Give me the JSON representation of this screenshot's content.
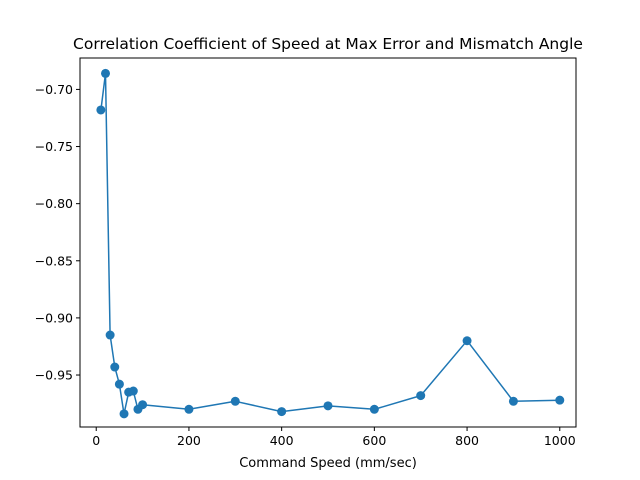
{
  "chart_data": {
    "type": "line",
    "title": "Correlation Coefficient of Speed at Max Error and Mismatch Angle",
    "xlabel": "Command Speed (mm/sec)",
    "ylabel": "",
    "xlim": [
      -35,
      1035
    ],
    "ylim": [
      -0.9955,
      -0.6725
    ],
    "xticks": [
      0,
      200,
      400,
      600,
      800,
      1000
    ],
    "yticks": [
      -0.95,
      -0.9,
      -0.85,
      -0.8,
      -0.75,
      -0.7
    ],
    "xtick_labels": [
      "0",
      "200",
      "400",
      "600",
      "800",
      "1000"
    ],
    "ytick_labels": [
      "−0.95",
      "−0.90",
      "−0.85",
      "−0.80",
      "−0.75",
      "−0.70"
    ],
    "grid": false,
    "series": [
      {
        "color": "#1f77b4",
        "marker": "circle",
        "x": [
          10,
          20,
          30,
          40,
          50,
          60,
          70,
          80,
          90,
          100,
          200,
          300,
          400,
          500,
          600,
          700,
          800,
          900,
          1000
        ],
        "y": [
          -0.718,
          -0.686,
          -0.915,
          -0.943,
          -0.958,
          -0.984,
          -0.965,
          -0.964,
          -0.98,
          -0.976,
          -0.98,
          -0.973,
          -0.982,
          -0.977,
          -0.98,
          -0.968,
          -0.92,
          -0.973,
          -0.972
        ]
      }
    ]
  }
}
